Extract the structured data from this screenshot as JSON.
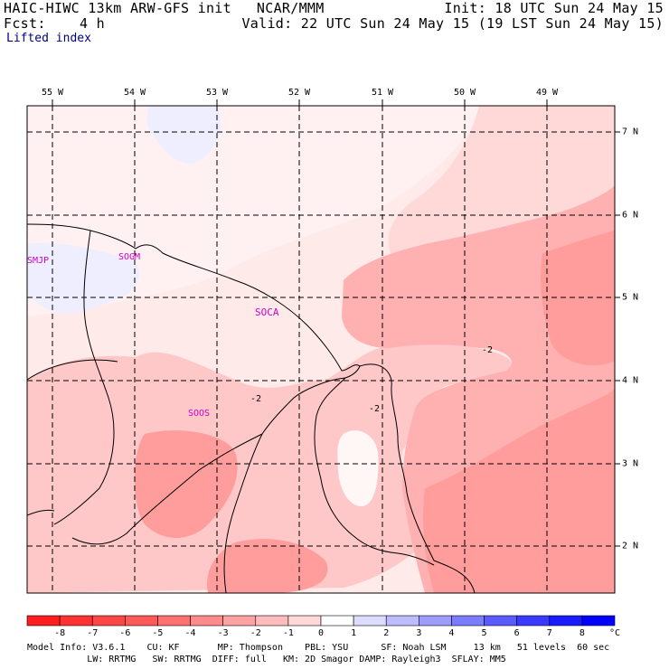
{
  "header": {
    "line1_left": "HAIC-HIWC 13km ARW-GFS init   NCAR/MMM",
    "line1_right": "Init: 18 UTC Sun 24 May 15",
    "line2_left": "Fcst:    4 h",
    "line2_right": "Valid: 22 UTC Sun 24 May 15 (19 LST Sun 24 May 15)",
    "field_name": "Lifted index"
  },
  "map": {
    "longitude_labels": [
      "55 W",
      "54 W",
      "53 W",
      "52 W",
      "51 W",
      "50 W",
      "49 W"
    ],
    "latitude_labels": [
      "7 N",
      "6 N",
      "5 N",
      "4 N",
      "3 N",
      "2 N"
    ],
    "stations": [
      "SMJP",
      "SOGM",
      "SOCA",
      "SOOS"
    ],
    "contour_labels": [
      "-2",
      "-2",
      "-2"
    ],
    "fill_colors": {
      "lt_neg1": "#ffe8e8",
      "neg1_to_neg2": "#ffd0d0",
      "neg2_to_neg3": "#ffa8a8",
      "neg3_to_neg4": "#ff9090",
      "zero_to_1": "#fff6f6",
      "one_to_2": "#eeeeff"
    }
  },
  "colorbar": {
    "ticks": [
      "-8",
      "-7",
      "-6",
      "-5",
      "-4",
      "-3",
      "-2",
      "-1",
      "0",
      "1",
      "2",
      "3",
      "4",
      "5",
      "6",
      "7",
      "8"
    ],
    "unit": "°C",
    "colors": [
      "#ff1e1e",
      "#ff3232",
      "#ff4646",
      "#ff5a5a",
      "#ff7070",
      "#ff8a8a",
      "#ffa2a2",
      "#ffbcbc",
      "#ffd8d8",
      "#ffffff",
      "#dcdcff",
      "#bcbcff",
      "#9c9cff",
      "#7c7cff",
      "#5a5aff",
      "#3a3aff",
      "#1a1aff",
      "#0000ff"
    ]
  },
  "footer": {
    "line1": "Model Info: V3.6.1    CU: KF       MP: Thompson    PBL: YSU      SF: Noah LSM     13 km   51 levels  60 sec",
    "line2": "           LW: RRTMG   SW: RRTMG  DIFF: full   KM: 2D Smagor DAMP: Rayleigh3  SFLAY: MM5"
  }
}
